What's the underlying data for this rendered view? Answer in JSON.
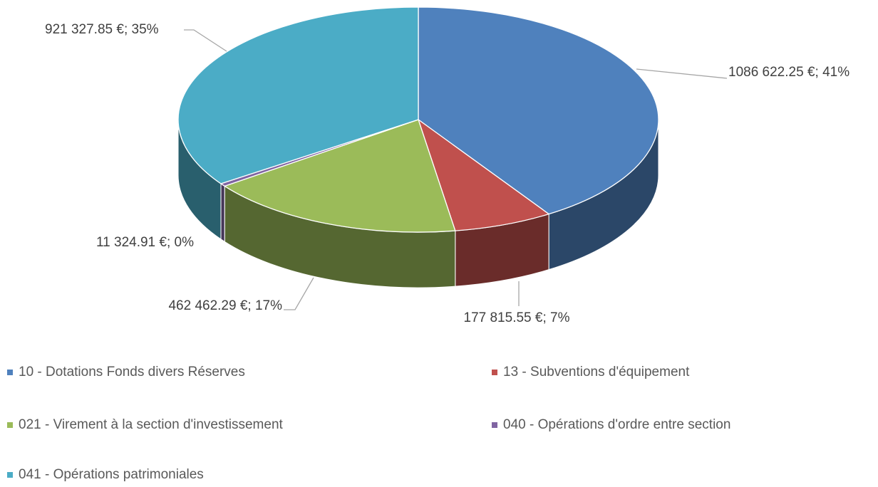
{
  "chart_data": {
    "type": "pie",
    "categories": [
      "10 - Dotations Fonds divers Réserves",
      "13 - Subventions d'équipement",
      "021 - Virement à la section d'investissement",
      "040 - Opérations d'ordre entre section",
      "041 - Opérations patrimoniales"
    ],
    "values": [
      1086622.25,
      177815.55,
      462462.29,
      11324.91,
      921327.85
    ],
    "value_labels": [
      "1086 622.25 €; 41%",
      "177 815.55 €; 7%",
      "462 462.29 €; 17%",
      "11 324.91 €; 0%",
      "921 327.85 €; 35%"
    ],
    "colors": [
      "#4f81bd",
      "#c0504d",
      "#9bbb59",
      "#8064a2",
      "#4bacc6"
    ],
    "legend": "bottom"
  }
}
